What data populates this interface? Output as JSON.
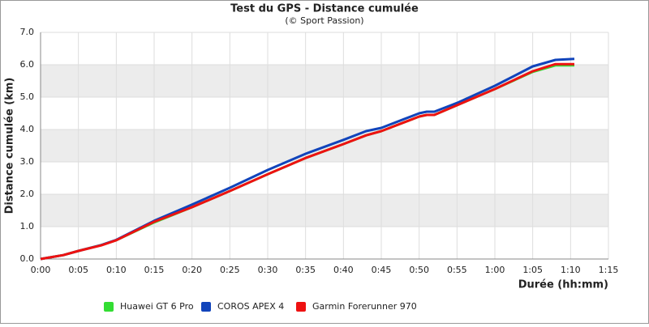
{
  "chart_data": {
    "type": "line",
    "title": "Test du GPS - Distance cumulée",
    "subtitle": "(© Sport Passion)",
    "x_label": "Durée (hh:mm)",
    "y_label": "Distance cumulée (km)",
    "x": [
      0,
      1,
      3,
      5,
      8,
      10,
      15,
      20,
      25,
      30,
      35,
      40,
      43,
      45,
      48,
      50,
      51,
      52,
      55,
      60,
      65,
      68,
      70.5
    ],
    "series": [
      {
        "name": "Huawei GT 6 Pro",
        "color": "#33dd33",
        "values": [
          0,
          0.04,
          0.12,
          0.25,
          0.43,
          0.58,
          1.13,
          1.6,
          2.1,
          2.62,
          3.12,
          3.55,
          3.82,
          3.95,
          4.22,
          4.4,
          4.45,
          4.45,
          4.75,
          5.25,
          5.78,
          5.98,
          5.98
        ]
      },
      {
        "name": "COROS APEX 4",
        "color": "#1144bb",
        "values": [
          0,
          0.04,
          0.12,
          0.25,
          0.43,
          0.59,
          1.18,
          1.68,
          2.2,
          2.75,
          3.25,
          3.68,
          3.95,
          4.05,
          4.32,
          4.5,
          4.55,
          4.55,
          4.82,
          5.35,
          5.95,
          6.15,
          6.18
        ]
      },
      {
        "name": "Garmin Forerunner 970",
        "color": "#ee1111",
        "values": [
          0,
          0.04,
          0.12,
          0.25,
          0.42,
          0.58,
          1.15,
          1.6,
          2.1,
          2.62,
          3.12,
          3.55,
          3.82,
          3.95,
          4.22,
          4.4,
          4.45,
          4.45,
          4.75,
          5.25,
          5.8,
          6.02,
          6.02
        ]
      }
    ],
    "xlim": [
      0,
      75
    ],
    "xticks": [
      {
        "value": 0,
        "label": "0:00"
      },
      {
        "value": 5,
        "label": "0:05"
      },
      {
        "value": 10,
        "label": "0:10"
      },
      {
        "value": 15,
        "label": "0:15"
      },
      {
        "value": 20,
        "label": "0:20"
      },
      {
        "value": 25,
        "label": "0:25"
      },
      {
        "value": 30,
        "label": "0:30"
      },
      {
        "value": 35,
        "label": "0:35"
      },
      {
        "value": 40,
        "label": "0:40"
      },
      {
        "value": 45,
        "label": "0:45"
      },
      {
        "value": 50,
        "label": "0:50"
      },
      {
        "value": 55,
        "label": "0:55"
      },
      {
        "value": 60,
        "label": "1:00"
      },
      {
        "value": 65,
        "label": "1:05"
      },
      {
        "value": 70,
        "label": "1:10"
      },
      {
        "value": 75,
        "label": "1:15"
      }
    ],
    "ylim": [
      0,
      7
    ],
    "yticks": [
      {
        "value": 0,
        "label": "0.0"
      },
      {
        "value": 1,
        "label": "1.0"
      },
      {
        "value": 2,
        "label": "2.0"
      },
      {
        "value": 3,
        "label": "3.0"
      },
      {
        "value": 4,
        "label": "4.0"
      },
      {
        "value": 5,
        "label": "5.0"
      },
      {
        "value": 6,
        "label": "6.0"
      },
      {
        "value": 7,
        "label": "7.0"
      }
    ],
    "grid": true,
    "legend": "bottom"
  }
}
